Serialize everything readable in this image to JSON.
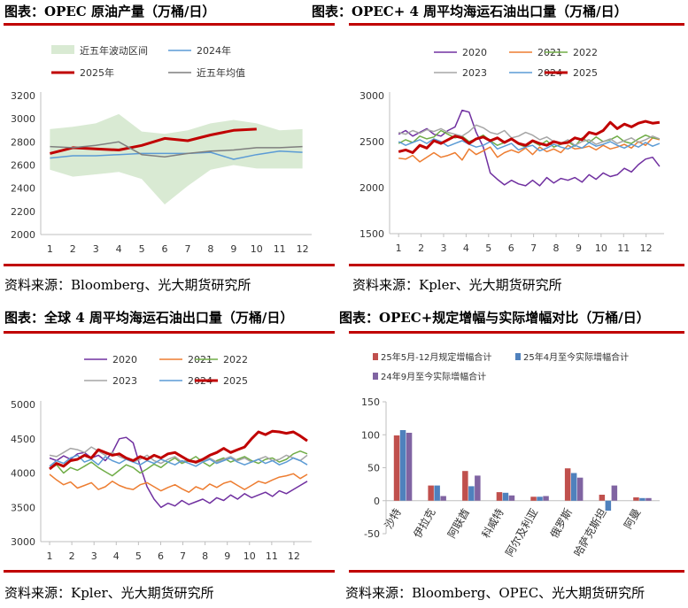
{
  "panels": {
    "p1": {
      "title": "图表：OPEC 原油产量（万桶/日）",
      "source": "资料来源：Bloomberg、光大期货研究所"
    },
    "p2": {
      "title": "图表：OPEC+ 4 周平均海运石油出口量（万桶/日）",
      "source": "资料来源：Kpler、光大期货研究所"
    },
    "p3": {
      "title": "图表：全球 4 周平均海运石油出口量（万桶/日）",
      "source": "资料来源：Kpler、光大期货研究所"
    },
    "p4": {
      "title": "图表：OPEC+规定增幅与实际增幅对比（万桶/日）",
      "source": "资料来源：Bloomberg、OPEC、光大期货研究所"
    }
  },
  "colors": {
    "rule": "#c00000",
    "band": "#d9ead3",
    "y2020": "#7030a0",
    "y2021": "#ed7d31",
    "y2022": "#70ad47",
    "y2023": "#a5a5a5",
    "y2024": "#5b9bd5",
    "y2025": "#c00000",
    "avg": "#7f7f7f",
    "bar1": "#c0504d",
    "bar2": "#4f81bd",
    "bar3": "#8064a2"
  },
  "chart_data": [
    {
      "type": "area",
      "id": "opec_production",
      "x": [
        1,
        2,
        3,
        4,
        5,
        6,
        7,
        8,
        9,
        10,
        11,
        12
      ],
      "xlim": [
        0.6,
        12.4
      ],
      "ylim": [
        2000,
        3200
      ],
      "yticks": [
        2000,
        2200,
        2400,
        2600,
        2800,
        3000,
        3200
      ],
      "band": {
        "name": "近五年波动区间",
        "upper": [
          2910,
          2930,
          2960,
          3040,
          2890,
          2870,
          2900,
          2960,
          2990,
          2960,
          2900,
          2910
        ],
        "lower": [
          2560,
          2500,
          2520,
          2540,
          2480,
          2260,
          2420,
          2560,
          2600,
          2570,
          2570,
          2570
        ]
      },
      "series": [
        {
          "name": "2024年",
          "color_key": "y2024",
          "width": 1.5,
          "values": [
            2660,
            2680,
            2680,
            2690,
            2700,
            2700,
            2700,
            2710,
            2650,
            2690,
            2720,
            2710
          ]
        },
        {
          "name": "2025年",
          "color_key": "y2025",
          "width": 3,
          "values": [
            2700,
            2750,
            2740,
            2730,
            2770,
            2830,
            2810,
            2860,
            2900,
            2910,
            null,
            null
          ]
        },
        {
          "name": "近五年均值",
          "color_key": "avg",
          "width": 1.5,
          "values": [
            2760,
            2750,
            2770,
            2800,
            2690,
            2670,
            2700,
            2720,
            2730,
            2750,
            2750,
            2760
          ]
        }
      ]
    },
    {
      "type": "line",
      "id": "opecplus_seaborne",
      "xlim": [
        0.6,
        12.8
      ],
      "ylim": [
        1500,
        3000
      ],
      "yticks": [
        1500,
        2000,
        2500,
        3000
      ],
      "xticks": [
        1,
        2,
        3,
        4,
        5,
        6,
        7,
        8,
        9,
        10,
        11,
        12
      ],
      "series": [
        {
          "name": "2020",
          "color_key": "y2020",
          "width": 1.5,
          "values": [
            2580,
            2620,
            2560,
            2600,
            2640,
            2580,
            2560,
            2620,
            2660,
            2840,
            2820,
            2600,
            2440,
            2160,
            2090,
            2030,
            2080,
            2040,
            2020,
            2080,
            2020,
            2110,
            2050,
            2100,
            2080,
            2110,
            2060,
            2140,
            2090,
            2160,
            2120,
            2140,
            2210,
            2170,
            2250,
            2310,
            2330,
            2230
          ]
        },
        {
          "name": "2021",
          "color_key": "y2021",
          "width": 1.5,
          "values": [
            2320,
            2310,
            2350,
            2280,
            2330,
            2380,
            2330,
            2350,
            2380,
            2300,
            2420,
            2360,
            2400,
            2440,
            2330,
            2380,
            2410,
            2380,
            2430,
            2360,
            2440,
            2390,
            2420,
            2380,
            2460,
            2420,
            2430,
            2450,
            2410,
            2460,
            2420,
            2440,
            2470,
            2430,
            2500,
            2460,
            2540,
            2520
          ]
        },
        {
          "name": "2022",
          "color_key": "y2022",
          "width": 1.5,
          "values": [
            2480,
            2520,
            2490,
            2560,
            2530,
            2550,
            2620,
            2580,
            2540,
            2560,
            2500,
            2530,
            2570,
            2510,
            2460,
            2490,
            2530,
            2470,
            2440,
            2500,
            2460,
            2510,
            2440,
            2470,
            2500,
            2450,
            2540,
            2490,
            2550,
            2500,
            2520,
            2560,
            2500,
            2480,
            2530,
            2570,
            2540,
            2530
          ]
        },
        {
          "name": "2023",
          "color_key": "y2023",
          "width": 1.5,
          "values": [
            2600,
            2580,
            2620,
            2590,
            2630,
            2610,
            2640,
            2600,
            2580,
            2560,
            2610,
            2680,
            2650,
            2600,
            2580,
            2620,
            2540,
            2560,
            2600,
            2570,
            2520,
            2550,
            2500,
            2480,
            2520,
            2460,
            2500,
            2520,
            2470,
            2500,
            2530,
            2480,
            2510,
            2540,
            2490,
            2520,
            2560,
            2530
          ]
        },
        {
          "name": "2024",
          "color_key": "y2024",
          "width": 1.5,
          "values": [
            2500,
            2460,
            2490,
            2520,
            2480,
            2530,
            2500,
            2450,
            2480,
            2510,
            2470,
            2440,
            2460,
            2500,
            2420,
            2450,
            2480,
            2410,
            2440,
            2460,
            2400,
            2430,
            2470,
            2440,
            2420,
            2460,
            2430,
            2490,
            2450,
            2470,
            2500,
            2460,
            2430,
            2470,
            2440,
            2490,
            2450,
            2480
          ]
        },
        {
          "name": "2025",
          "color_key": "y2025",
          "width": 3,
          "values": [
            2390,
            2410,
            2380,
            2460,
            2430,
            2510,
            2480,
            2520,
            2560,
            2540,
            2480,
            2530,
            2550,
            2510,
            2540,
            2490,
            2530,
            2480,
            2460,
            2510,
            2480,
            2460,
            2500,
            2480,
            2490,
            2540,
            2520,
            2600,
            2580,
            2620,
            2710,
            2640,
            2690,
            2660,
            2700,
            2720,
            2700,
            2710
          ]
        }
      ]
    },
    {
      "type": "line",
      "id": "global_seaborne",
      "xlim": [
        0.6,
        12.8
      ],
      "ylim": [
        3000,
        5000
      ],
      "yticks": [
        3000,
        3500,
        4000,
        4500,
        5000
      ],
      "xticks": [
        1,
        2,
        3,
        4,
        5,
        6,
        7,
        8,
        9,
        10,
        11,
        12
      ],
      "series": [
        {
          "name": "2020",
          "color_key": "y2020",
          "width": 1.5,
          "values": [
            4220,
            4180,
            4250,
            4200,
            4280,
            4300,
            4220,
            4260,
            4180,
            4300,
            4500,
            4520,
            4440,
            4100,
            3800,
            3620,
            3500,
            3560,
            3520,
            3600,
            3540,
            3580,
            3620,
            3560,
            3640,
            3600,
            3680,
            3620,
            3700,
            3640,
            3680,
            3720,
            3660,
            3740,
            3700,
            3760,
            3820,
            3880
          ]
        },
        {
          "name": "2021",
          "color_key": "y2021",
          "width": 1.5,
          "values": [
            3980,
            3900,
            3830,
            3870,
            3780,
            3820,
            3860,
            3760,
            3800,
            3880,
            3820,
            3780,
            3760,
            3830,
            3860,
            3800,
            3740,
            3790,
            3830,
            3770,
            3720,
            3800,
            3760,
            3840,
            3790,
            3850,
            3880,
            3820,
            3760,
            3820,
            3880,
            3850,
            3900,
            3940,
            3960,
            3990,
            3920,
            3980
          ]
        },
        {
          "name": "2022",
          "color_key": "y2022",
          "width": 1.5,
          "values": [
            4060,
            4120,
            4000,
            4080,
            4040,
            4100,
            4160,
            4080,
            4020,
            3960,
            4040,
            4120,
            4080,
            4000,
            4060,
            4130,
            4080,
            4160,
            4220,
            4140,
            4180,
            4240,
            4160,
            4100,
            4180,
            4220,
            4160,
            4200,
            4240,
            4180,
            4140,
            4200,
            4220,
            4160,
            4200,
            4280,
            4320,
            4280
          ]
        },
        {
          "name": "2023",
          "color_key": "y2023",
          "width": 1.5,
          "values": [
            4260,
            4240,
            4300,
            4360,
            4340,
            4300,
            4380,
            4320,
            4260,
            4300,
            4240,
            4200,
            4160,
            4200,
            4260,
            4180,
            4140,
            4200,
            4240,
            4160,
            4200,
            4140,
            4180,
            4220,
            4160,
            4200,
            4240,
            4180,
            4220,
            4160,
            4200,
            4240,
            4180,
            4200,
            4260,
            4220,
            4180,
            4260
          ]
        },
        {
          "name": "2024",
          "color_key": "y2024",
          "width": 1.5,
          "values": [
            4100,
            4180,
            4140,
            4220,
            4260,
            4160,
            4200,
            4120,
            4240,
            4180,
            4140,
            4200,
            4160,
            4120,
            4180,
            4140,
            4200,
            4160,
            4120,
            4180,
            4140,
            4100,
            4160,
            4200,
            4140,
            4180,
            4220,
            4160,
            4120,
            4160,
            4200,
            4140,
            4180,
            4120,
            4160,
            4220,
            4180,
            4120
          ]
        },
        {
          "name": "2025",
          "color_key": "y2025",
          "width": 3,
          "values": [
            4060,
            4140,
            4100,
            4180,
            4200,
            4260,
            4220,
            4340,
            4300,
            4260,
            4280,
            4220,
            4180,
            4240,
            4200,
            4260,
            4220,
            4280,
            4300,
            4240,
            4180,
            4160,
            4200,
            4260,
            4300,
            4360,
            4300,
            4340,
            4380,
            4500,
            4600,
            4560,
            4610,
            4600,
            4580,
            4600,
            4540,
            4470
          ]
        }
      ]
    },
    {
      "type": "bar",
      "id": "quota_vs_actual",
      "categories": [
        "沙特",
        "伊拉克",
        "阿联酋",
        "科威特",
        "阿尔及利亚",
        "俄罗斯",
        "哈萨克斯坦",
        "阿曼"
      ],
      "ylim": [
        -50,
        150
      ],
      "yticks": [
        -50,
        0,
        50,
        100,
        150
      ],
      "series": [
        {
          "name": "25年5月-12月规定增幅合计",
          "color_key": "bar1",
          "values": [
            99,
            23,
            45,
            13,
            6,
            49,
            9,
            5
          ]
        },
        {
          "name": "25年4月至今实际增幅合计",
          "color_key": "bar2",
          "values": [
            107,
            23,
            22,
            12,
            6,
            42,
            -15,
            4
          ]
        },
        {
          "name": "24年9月至今实际增幅合计",
          "color_key": "bar3",
          "values": [
            103,
            7,
            38,
            8,
            7,
            35,
            23,
            4
          ]
        }
      ]
    }
  ]
}
